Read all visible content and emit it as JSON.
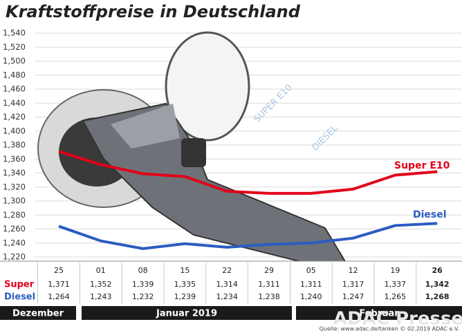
{
  "chart_data": {
    "type": "line",
    "title": "Kraftstoffpreise in Deutschland",
    "categories": [
      "25",
      "01",
      "08",
      "15",
      "22",
      "29",
      "05",
      "12",
      "19",
      "26"
    ],
    "series": [
      {
        "name": "Super E10",
        "row_label": "Super",
        "color": "#e2001a",
        "values": [
          1.371,
          1.352,
          1.339,
          1.335,
          1.314,
          1.311,
          1.311,
          1.317,
          1.337,
          1.342
        ],
        "value_labels": [
          "1,371",
          "1,352",
          "1,339",
          "1,335",
          "1,314",
          "1,311",
          "1,311",
          "1,317",
          "1,337",
          "1,342"
        ]
      },
      {
        "name": "Diesel",
        "row_label": "Diesel",
        "color": "#2b5cc0",
        "values": [
          1.264,
          1.243,
          1.232,
          1.239,
          1.234,
          1.238,
          1.24,
          1.247,
          1.265,
          1.268
        ],
        "value_labels": [
          "1,264",
          "1,243",
          "1,232",
          "1,239",
          "1,234",
          "1,238",
          "1,240",
          "1,247",
          "1,265",
          "1,268"
        ]
      }
    ],
    "ylim": [
      1.22,
      1.54
    ],
    "yticks": [
      {
        "value": 1.22,
        "label": "1,220"
      },
      {
        "value": 1.24,
        "label": "1,240"
      },
      {
        "value": 1.26,
        "label": "1,260"
      },
      {
        "value": 1.28,
        "label": "1,280"
      },
      {
        "value": 1.3,
        "label": "1,300"
      },
      {
        "value": 1.32,
        "label": "1,320"
      },
      {
        "value": 1.34,
        "label": "1,340"
      },
      {
        "value": 1.36,
        "label": "1,360"
      },
      {
        "value": 1.38,
        "label": "1,380"
      },
      {
        "value": 1.4,
        "label": "1,400"
      },
      {
        "value": 1.42,
        "label": "1,420"
      },
      {
        "value": 1.44,
        "label": "1,440"
      },
      {
        "value": 1.46,
        "label": "1,460"
      },
      {
        "value": 1.48,
        "label": "1,480"
      },
      {
        "value": 1.5,
        "label": "1,500"
      },
      {
        "value": 1.52,
        "label": "1,520"
      },
      {
        "value": 1.54,
        "label": "1,540"
      }
    ],
    "grid": true,
    "months": [
      "Dezember",
      "Januar 2019",
      "Februar"
    ],
    "illustration_texts": [
      "SUPER E10",
      "DIESEL"
    ],
    "watermark": "ADAC Presse",
    "source": "Quelle: www.adac.de/tanken  © 02.2019  ADAC e.V."
  }
}
